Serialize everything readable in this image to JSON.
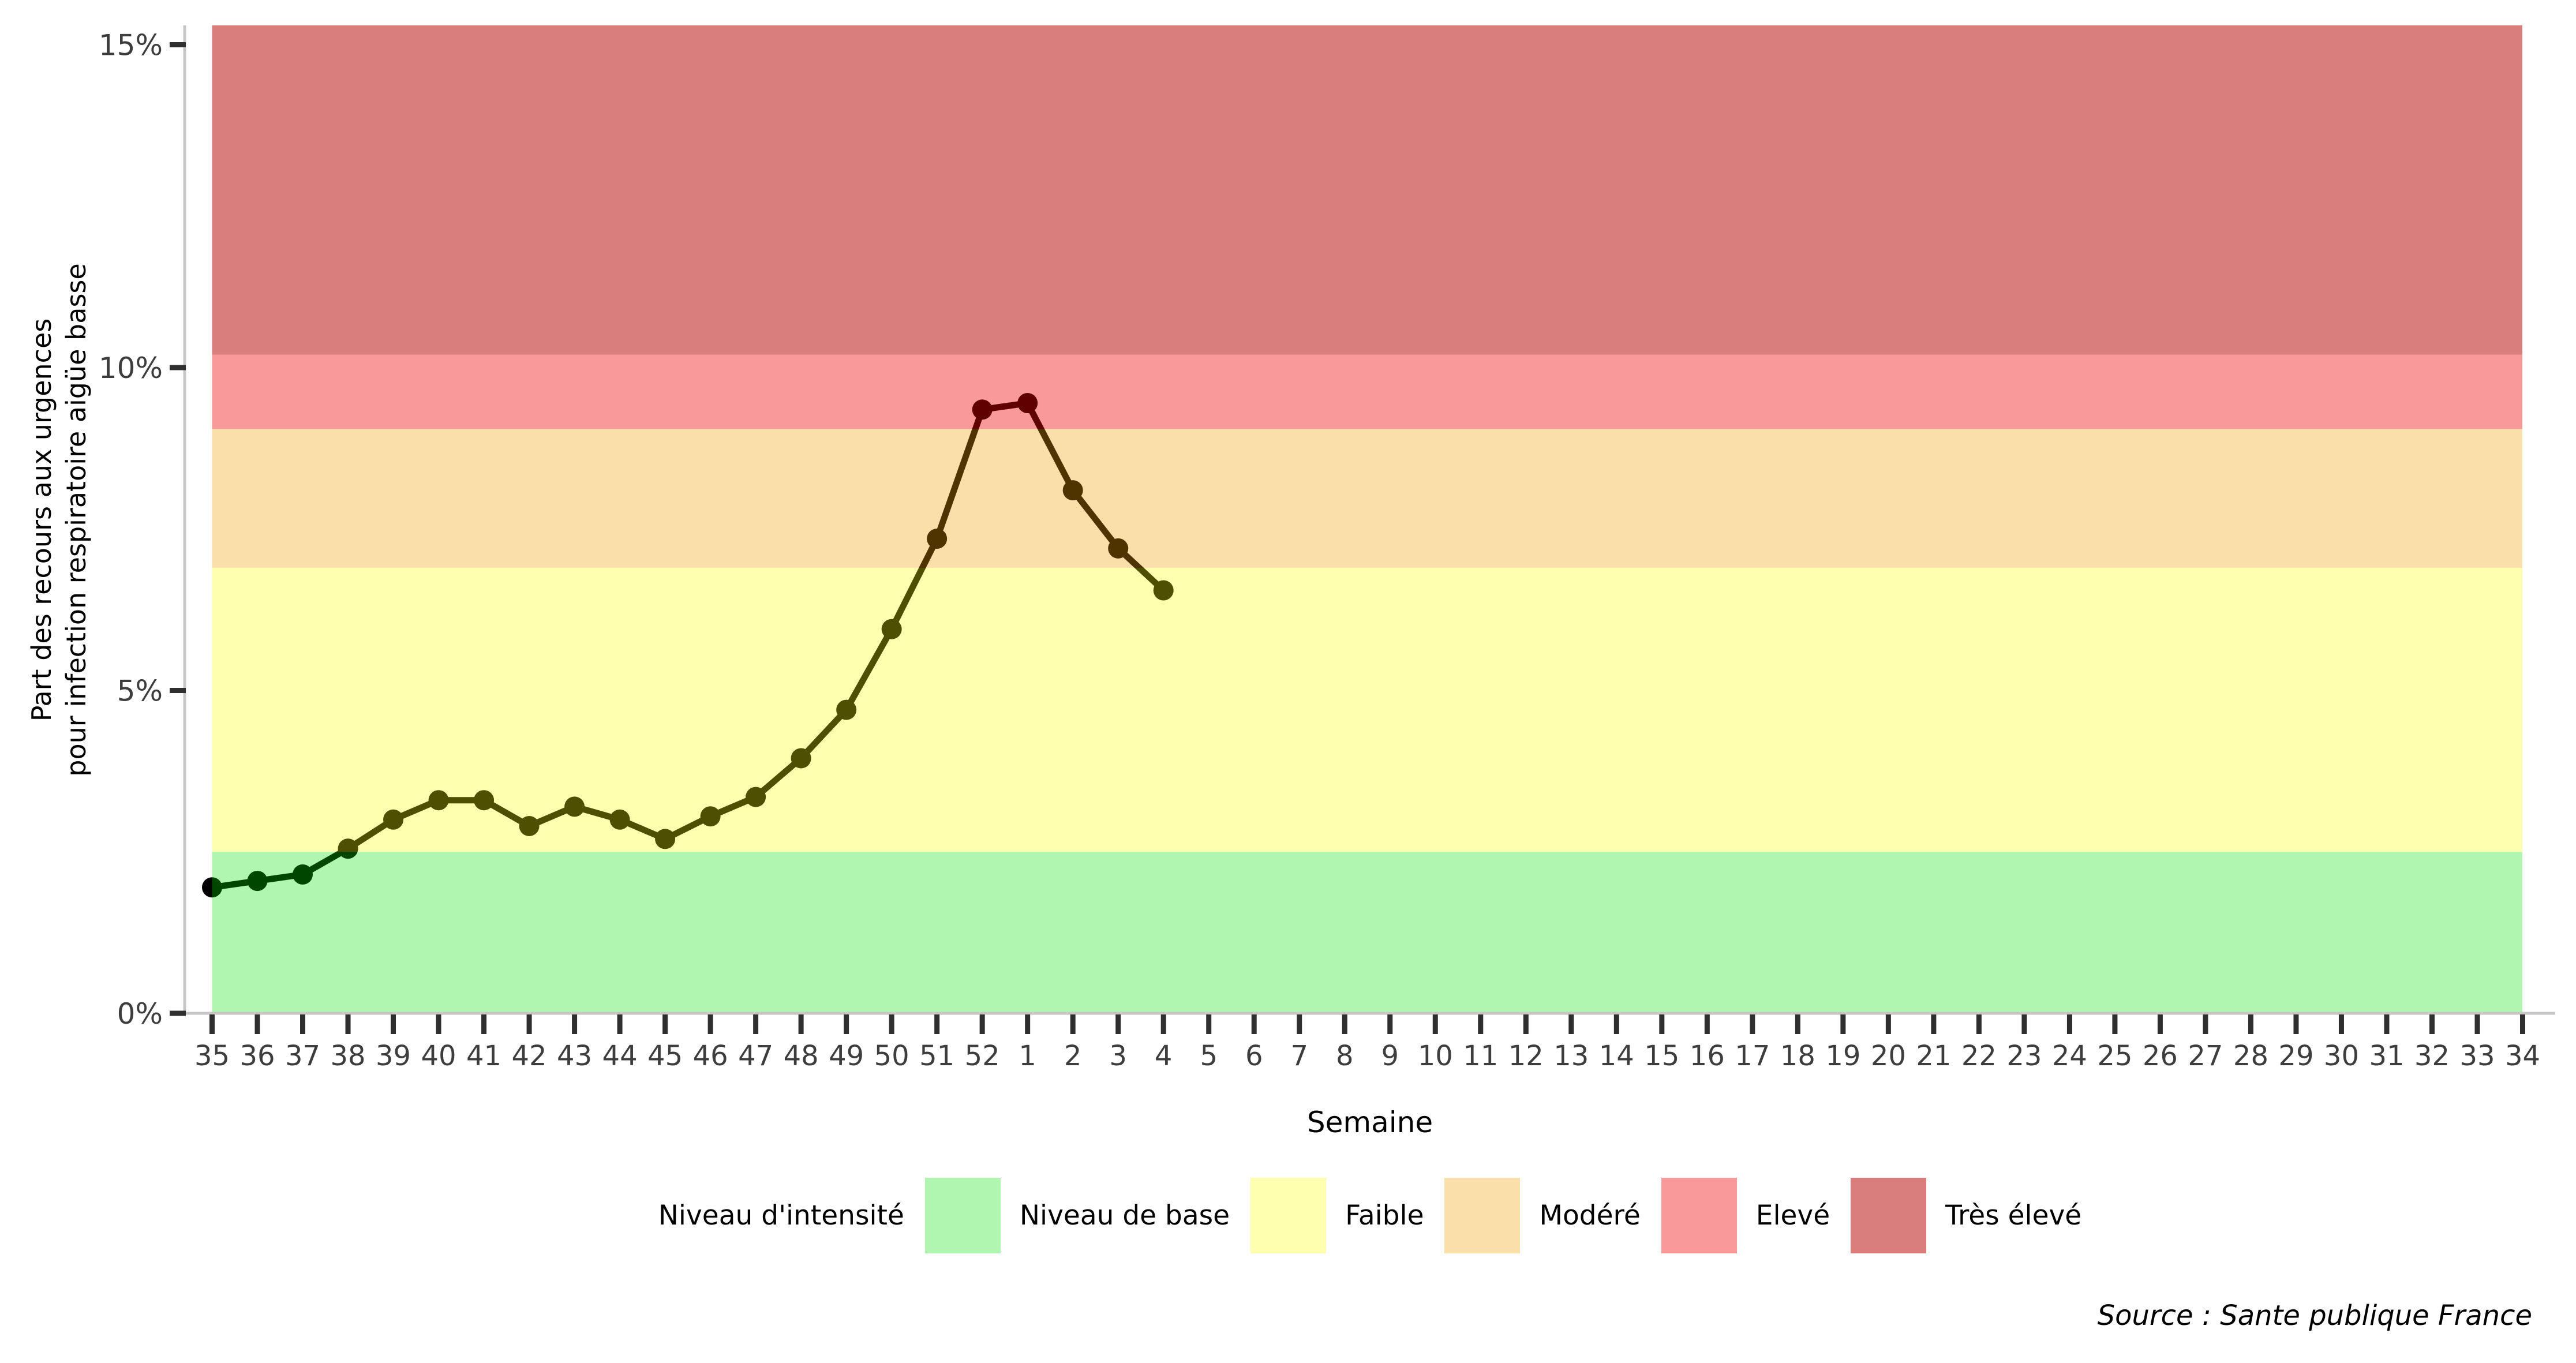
{
  "figure": {
    "y_axis_title_line1": "Part des recours aux urgences",
    "y_axis_title_line2": "pour infection respiratoire aigüe basse",
    "x_axis_title": "Semaine",
    "source_text": "Source : Sante publique France",
    "background_color": "#ffffff",
    "axis_line_color": "#c6c6c6",
    "tick_color": "#2f2f2f",
    "tick_label_color": "#3d3d3d"
  },
  "legend": {
    "title": "Niveau d'intensité",
    "items": [
      {
        "label": "Niveau de base",
        "slug": "niveau-de-base",
        "fill": "rgba(0,222,0,0.31)",
        "flat_color": "#b0f5b0"
      },
      {
        "label": "Faible",
        "slug": "faible",
        "fill": "rgba(255,255,0,0.31)",
        "flat_color": "#ffffb0"
      },
      {
        "label": "Modéré",
        "slug": "modere",
        "fill": "rgba(240,159,0,0.33)",
        "flat_color": "#fadfaa"
      },
      {
        "label": "Elevé",
        "slug": "eleve",
        "fill": "rgba(240,0,0,0.40)",
        "flat_color": "#f99a99"
      },
      {
        "label": "Très élevé",
        "slug": "tres-eleve",
        "fill": "rgba(180,0,0,0.51)",
        "flat_color": "#d97d7d"
      }
    ]
  },
  "chart_data": {
    "type": "line",
    "title": "",
    "xlabel": "Semaine",
    "ylabel": "Part des recours aux urgences pour infection respiratoire aigüe basse",
    "x_categories": [
      "35",
      "36",
      "37",
      "38",
      "39",
      "40",
      "41",
      "42",
      "43",
      "44",
      "45",
      "46",
      "47",
      "48",
      "49",
      "50",
      "51",
      "52",
      "1",
      "2",
      "3",
      "4",
      "5",
      "6",
      "7",
      "8",
      "9",
      "10",
      "11",
      "12",
      "13",
      "14",
      "15",
      "16",
      "17",
      "18",
      "19",
      "20",
      "21",
      "22",
      "23",
      "24",
      "25",
      "26",
      "27",
      "28",
      "29",
      "30",
      "31",
      "32",
      "33",
      "34"
    ],
    "series": [
      {
        "name": "Part des recours aux urgences pour infection respiratoire aigüe basse",
        "x": [
          "35",
          "36",
          "37",
          "38",
          "39",
          "40",
          "41",
          "42",
          "43",
          "44",
          "45",
          "46",
          "47",
          "48",
          "49",
          "50",
          "51",
          "52",
          "1",
          "2",
          "3",
          "4"
        ],
        "values": [
          1.95,
          2.05,
          2.15,
          2.55,
          3.0,
          3.3,
          3.3,
          2.9,
          3.2,
          3.0,
          2.7,
          3.05,
          3.35,
          3.95,
          4.7,
          5.95,
          7.35,
          9.35,
          9.45,
          8.1,
          7.2,
          6.55
        ]
      }
    ],
    "y_ticks": [
      {
        "label": "0%",
        "value": 0
      },
      {
        "label": "5%",
        "value": 5
      },
      {
        "label": "10%",
        "value": 10
      },
      {
        "label": "15%",
        "value": 15
      }
    ],
    "ylim": [
      0,
      15.3
    ],
    "grid": false,
    "legend_position": "bottom",
    "line_color": "#000000",
    "bands": [
      {
        "label": "Niveau de base",
        "slug": "niveau-de-base",
        "from": 0,
        "to": 2.5,
        "fill": "rgba(0,222,0,0.31)",
        "flat_color": "#b0f5b0"
      },
      {
        "label": "Faible",
        "slug": "faible",
        "from": 2.5,
        "to": 6.9,
        "fill": "rgba(255,255,0,0.31)",
        "flat_color": "#ffffb0"
      },
      {
        "label": "Modéré",
        "slug": "modere",
        "from": 6.9,
        "to": 9.05,
        "fill": "rgba(240,159,0,0.33)",
        "flat_color": "#fadfaa"
      },
      {
        "label": "Elevé",
        "slug": "eleve",
        "from": 9.05,
        "to": 10.2,
        "fill": "rgba(240,0,0,0.40)",
        "flat_color": "#f99a99"
      },
      {
        "label": "Très élevé",
        "slug": "tres-eleve",
        "from": 10.2,
        "to": 15.3,
        "fill": "rgba(180,0,0,0.51)",
        "flat_color": "#d97d7d"
      }
    ]
  }
}
